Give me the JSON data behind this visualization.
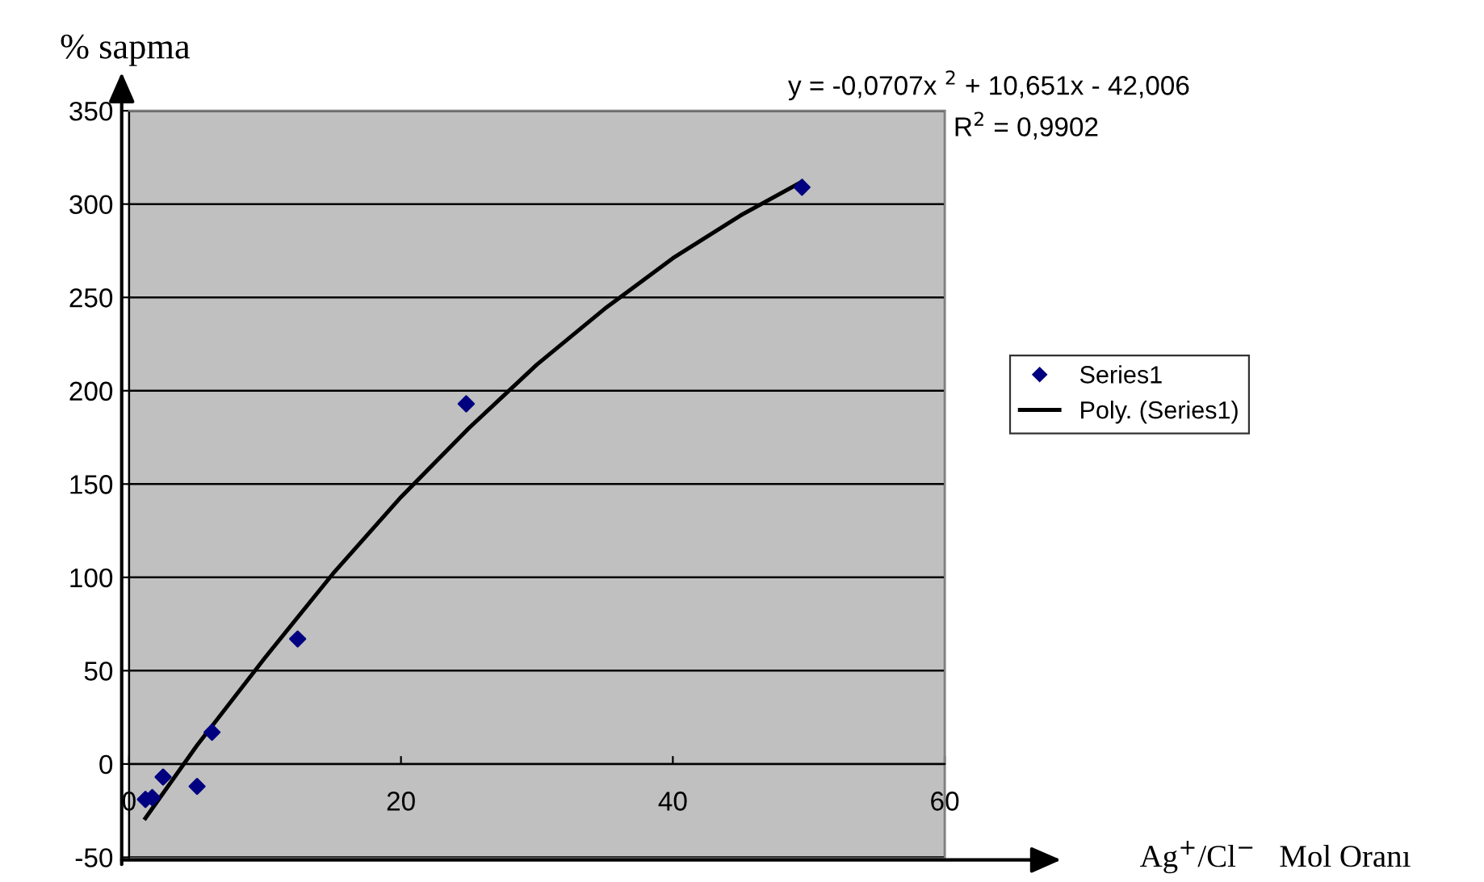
{
  "chart_data": {
    "type": "scatter",
    "xlabel": "Ag$^{+}$/Cl$^{−}$   Mol Oranı",
    "ylabel": "% sapma",
    "xlim": [
      0,
      60
    ],
    "xticks": [
      0,
      20,
      40,
      60
    ],
    "ylim": [
      -50,
      350
    ],
    "yticks": [
      -50,
      0,
      50,
      100,
      150,
      200,
      250,
      300,
      350
    ],
    "grid": "y",
    "legend": "right",
    "marker": "diamond",
    "annotations": [
      "y = -0,0707x $^{2}$ + 10,651x - 42,006",
      "R$^{2}$ = 0,9902"
    ],
    "series": [
      {
        "name": "Series1",
        "color": "#000080",
        "x": [
          1.2,
          1.7,
          2.5,
          5,
          6.1,
          12.4,
          24.8,
          49.5
        ],
        "values": [
          -19,
          -18,
          -7,
          -12,
          17,
          67,
          193,
          309
        ]
      },
      {
        "name": "Poly. (Series1)",
        "type": "line",
        "color": "#000000",
        "marker": "none",
        "line_style": "solid",
        "x": [
          1.2,
          5,
          10,
          15,
          20,
          25,
          30,
          35,
          40,
          45,
          49.5
        ],
        "values": [
          -29,
          10,
          57,
          102,
          143,
          180,
          214,
          244,
          271,
          294,
          312
        ]
      }
    ]
  }
}
